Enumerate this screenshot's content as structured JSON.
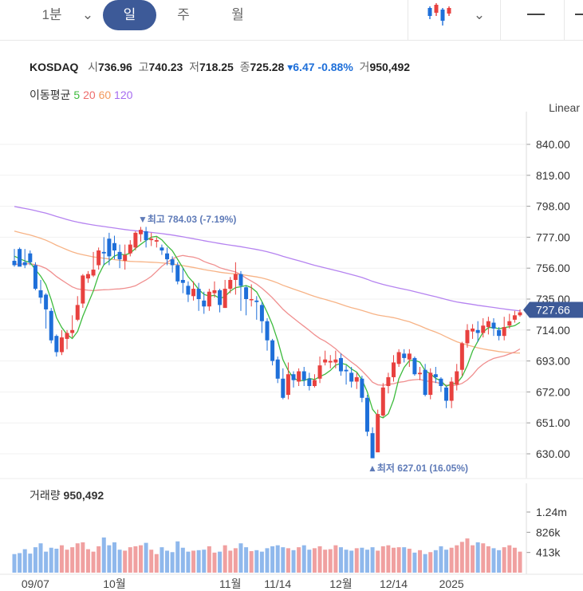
{
  "tabs": {
    "minute": "1분",
    "day": "일",
    "week": "주",
    "month": "월"
  },
  "header": {
    "symbol": "KOSDAQ",
    "open_label": "시",
    "open": "736.96",
    "high_label": "고",
    "high": "740.23",
    "low_label": "저",
    "low": "718.25",
    "close_label": "종",
    "close": "725.28",
    "change": "6.47",
    "change_pct": "-0.88%",
    "volume_label": "거",
    "volume": "950,492"
  },
  "ma_legend": {
    "title": "이동평균",
    "ma5": "5",
    "ma20": "20",
    "ma60": "60",
    "ma120": "120"
  },
  "scale_label": "Linear",
  "price_tag": "727.66",
  "volume_title": "거래량",
  "volume_value": "950,492",
  "annotations": {
    "high": "▼최고 784.03 (-7.19%)",
    "low": "▲최저 627.01 (16.05%)"
  },
  "colors": {
    "up": "#e8413f",
    "down": "#1e6fd9",
    "ma5": "#3dbb3d",
    "ma20": "#f08f8f",
    "ma60": "#f7b386",
    "ma120": "#b583f0",
    "accent": "#3d5a98"
  },
  "chart_data": {
    "type": "candlestick",
    "price_axis": {
      "ylim": [
        620,
        850
      ],
      "ticks": [
        "840.00",
        "819.00",
        "798.00",
        "777.00",
        "756.00",
        "735.00",
        "714.00",
        "693.00",
        "672.00",
        "651.00",
        "630.00"
      ]
    },
    "volume_axis": {
      "ticks": [
        "1.24m",
        "826k",
        "413k"
      ]
    },
    "x_labels": [
      {
        "label": "09/07",
        "i": 4
      },
      {
        "label": "10월",
        "i": 19
      },
      {
        "label": "11월",
        "i": 41
      },
      {
        "label": "11/14",
        "i": 50
      },
      {
        "label": "12월",
        "i": 62
      },
      {
        "label": "12/14",
        "i": 72
      },
      {
        "label": "2025",
        "i": 83
      }
    ],
    "candles": [
      [
        761,
        768,
        758,
        769,
        757
      ],
      [
        769,
        760,
        757,
        770,
        759
      ],
      [
        760,
        767,
        758,
        769,
        756
      ],
      [
        766,
        760,
        760,
        768,
        758
      ],
      [
        758,
        754,
        742,
        760,
        741
      ],
      [
        741,
        746,
        736,
        748,
        732
      ],
      [
        738,
        728,
        728,
        739,
        715
      ],
      [
        727,
        710,
        707,
        729,
        705
      ],
      [
        710,
        699,
        699,
        711,
        696
      ],
      [
        699,
        707,
        709,
        714,
        697
      ],
      [
        708,
        712,
        712,
        714,
        701
      ],
      [
        712,
        722,
        714,
        724,
        709
      ],
      [
        721,
        733,
        731,
        737,
        720
      ],
      [
        732,
        748,
        751,
        752,
        729
      ],
      [
        749,
        752,
        752,
        754,
        746
      ],
      [
        751,
        760,
        755,
        767,
        750
      ],
      [
        758,
        768,
        768,
        770,
        755
      ],
      [
        767,
        776,
        766,
        777,
        758
      ],
      [
        776,
        777,
        764,
        780,
        758
      ],
      [
        773,
        768,
        768,
        778,
        762
      ],
      [
        767,
        762,
        762,
        772,
        756
      ],
      [
        761,
        767,
        765,
        772,
        755
      ],
      [
        766,
        768,
        772,
        775,
        764
      ],
      [
        770,
        779,
        780,
        781,
        768
      ],
      [
        779,
        778,
        782,
        784,
        774
      ],
      [
        781,
        773,
        775,
        784,
        770
      ],
      [
        775,
        777,
        776,
        780,
        771
      ],
      [
        774,
        772,
        775,
        777,
        770
      ],
      [
        770,
        768,
        768,
        772,
        765
      ],
      [
        766,
        767,
        762,
        770,
        758
      ],
      [
        762,
        760,
        758,
        764,
        753
      ],
      [
        758,
        750,
        747,
        760,
        745
      ],
      [
        748,
        752,
        746,
        756,
        739
      ],
      [
        744,
        736,
        738,
        747,
        733
      ],
      [
        737,
        744,
        742,
        747,
        734
      ],
      [
        742,
        735,
        735,
        746,
        727
      ],
      [
        734,
        733,
        730,
        740,
        725
      ],
      [
        730,
        740,
        740,
        742,
        727
      ],
      [
        739,
        745,
        741,
        747,
        736
      ],
      [
        741,
        730,
        731,
        742,
        726
      ],
      [
        729,
        747,
        742,
        748,
        729
      ],
      [
        742,
        745,
        748,
        750,
        739
      ],
      [
        748,
        757,
        752,
        760,
        738
      ],
      [
        752,
        742,
        744,
        754,
        727
      ],
      [
        743,
        735,
        735,
        744,
        724
      ],
      [
        735,
        745,
        735,
        745,
        730
      ],
      [
        734,
        728,
        733,
        737,
        721
      ],
      [
        731,
        720,
        720,
        733,
        712
      ],
      [
        720,
        705,
        707,
        722,
        700
      ],
      [
        707,
        693,
        693,
        708,
        690
      ],
      [
        694,
        690,
        681,
        696,
        678
      ],
      [
        681,
        686,
        668,
        688,
        667
      ],
      [
        670,
        690,
        684,
        692,
        667
      ],
      [
        684,
        679,
        680,
        686,
        675
      ],
      [
        679,
        683,
        686,
        688,
        676
      ],
      [
        686,
        679,
        680,
        689,
        676
      ],
      [
        681,
        680,
        676,
        685,
        673
      ],
      [
        676,
        678,
        680,
        684,
        675
      ],
      [
        681,
        690,
        690,
        696,
        678
      ],
      [
        692,
        694,
        694,
        700,
        690
      ],
      [
        692,
        691,
        693,
        697,
        688
      ],
      [
        692,
        694,
        694,
        700,
        688
      ],
      [
        695,
        686,
        686,
        698,
        683
      ],
      [
        687,
        684,
        686,
        690,
        677
      ],
      [
        685,
        678,
        679,
        689,
        675
      ],
      [
        679,
        681,
        682,
        685,
        674
      ],
      [
        681,
        668,
        668,
        683,
        665
      ],
      [
        668,
        650,
        645,
        670,
        642
      ],
      [
        644,
        630,
        627,
        648,
        627
      ],
      [
        631,
        640,
        657,
        660,
        632
      ],
      [
        656,
        665,
        675,
        678,
        655
      ],
      [
        676,
        680,
        682,
        685,
        671
      ],
      [
        682,
        690,
        692,
        697,
        679
      ],
      [
        691,
        700,
        699,
        701,
        689
      ],
      [
        698,
        697,
        695,
        701,
        692
      ],
      [
        694,
        700,
        698,
        701,
        689
      ],
      [
        695,
        690,
        684,
        696,
        683
      ],
      [
        684,
        688,
        685,
        689,
        680
      ],
      [
        687,
        670,
        670,
        691,
        669
      ],
      [
        670,
        685,
        685,
        688,
        667
      ],
      [
        684,
        681,
        682,
        689,
        678
      ],
      [
        681,
        670,
        676,
        682,
        672
      ],
      [
        675,
        672,
        666,
        676,
        661
      ],
      [
        666,
        677,
        679,
        682,
        661
      ],
      [
        677,
        690,
        686,
        691,
        673
      ],
      [
        687,
        704,
        705,
        706,
        683
      ],
      [
        705,
        713,
        714,
        718,
        702
      ],
      [
        713,
        713,
        715,
        718,
        708
      ],
      [
        714,
        714,
        712,
        720,
        706
      ],
      [
        712,
        721,
        717,
        722,
        709
      ],
      [
        716,
        722,
        720,
        723,
        711
      ],
      [
        719,
        714,
        715,
        722,
        710
      ],
      [
        714,
        709,
        710,
        716,
        707
      ],
      [
        710,
        722,
        716,
        723,
        707
      ],
      [
        717,
        722,
        720,
        725,
        715
      ],
      [
        721,
        724,
        724,
        727,
        719
      ],
      [
        724,
        726,
        726,
        728,
        723
      ]
    ],
    "volumes": [
      380,
      400,
      480,
      390,
      520,
      600,
      430,
      510,
      490,
      560,
      470,
      520,
      600,
      620,
      480,
      430,
      540,
      720,
      560,
      620,
      470,
      450,
      520,
      540,
      560,
      610,
      470,
      380,
      520,
      450,
      420,
      640,
      510,
      430,
      450,
      460,
      470,
      540,
      410,
      430,
      560,
      450,
      500,
      600,
      520,
      440,
      460,
      430,
      500,
      540,
      560,
      520,
      500,
      460,
      520,
      560,
      470,
      500,
      540,
      470,
      480,
      560,
      520,
      470,
      450,
      500,
      510,
      470,
      520,
      450,
      540,
      560,
      510,
      520,
      520,
      490,
      410,
      460,
      380,
      420,
      460,
      540,
      470,
      510,
      560,
      630,
      700,
      560,
      620,
      600,
      540,
      500,
      460,
      520,
      560,
      510,
      430
    ]
  }
}
